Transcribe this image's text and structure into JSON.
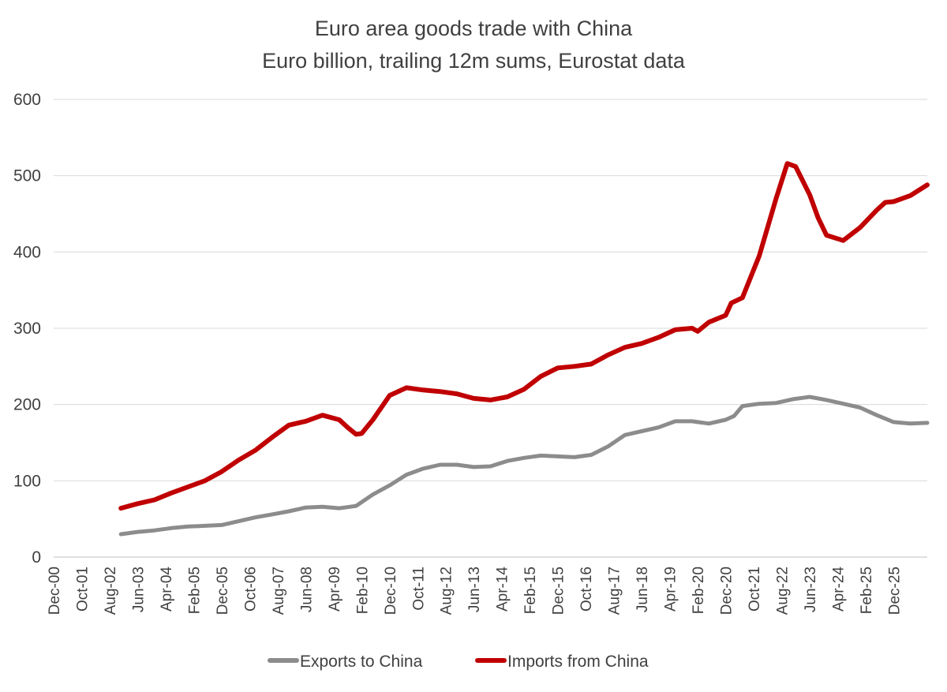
{
  "chart_data": {
    "type": "line",
    "title": "Euro area goods trade with China",
    "subtitle": "Euro billion, trailing 12m sums, Eurostat data",
    "xlabel": "",
    "ylabel": "",
    "ylim": [
      0,
      600
    ],
    "yticks": [
      0,
      100,
      200,
      300,
      400,
      500,
      600
    ],
    "x_ticks": [
      "Dec-00",
      "Oct-01",
      "Aug-02",
      "Jun-03",
      "Apr-04",
      "Feb-05",
      "Dec-05",
      "Oct-06",
      "Aug-07",
      "Jun-08",
      "Apr-09",
      "Feb-10",
      "Dec-10",
      "Oct-11",
      "Aug-12",
      "Jun-13",
      "Apr-14",
      "Feb-15",
      "Dec-15",
      "Oct-16",
      "Aug-17",
      "Jun-18",
      "Apr-19",
      "Feb-20",
      "Dec-20",
      "Oct-21",
      "Aug-22",
      "Jun-23",
      "Apr-24",
      "Feb-25",
      "Dec-25"
    ],
    "x_range": [
      "Dec-00",
      "Dec-26"
    ],
    "grid": true,
    "legend_position": "bottom",
    "colors": {
      "Exports to China": "#8c8c8c",
      "Imports from China": "#c00000"
    },
    "series": [
      {
        "name": "Exports to China",
        "points": [
          [
            "Dec-02",
            30
          ],
          [
            "Jun-03",
            33
          ],
          [
            "Dec-03",
            35
          ],
          [
            "Jun-04",
            38
          ],
          [
            "Dec-04",
            40
          ],
          [
            "Jun-05",
            41
          ],
          [
            "Dec-05",
            42
          ],
          [
            "Jun-06",
            47
          ],
          [
            "Dec-06",
            52
          ],
          [
            "Jun-07",
            56
          ],
          [
            "Dec-07",
            60
          ],
          [
            "Jun-08",
            65
          ],
          [
            "Dec-08",
            66
          ],
          [
            "Jun-09",
            64
          ],
          [
            "Dec-09",
            67
          ],
          [
            "Jun-10",
            82
          ],
          [
            "Dec-10",
            94
          ],
          [
            "Jun-11",
            108
          ],
          [
            "Dec-11",
            116
          ],
          [
            "Jun-12",
            121
          ],
          [
            "Dec-12",
            121
          ],
          [
            "Jun-13",
            118
          ],
          [
            "Dec-13",
            119
          ],
          [
            "Jun-14",
            126
          ],
          [
            "Dec-14",
            130
          ],
          [
            "Jun-15",
            133
          ],
          [
            "Dec-15",
            132
          ],
          [
            "Jun-16",
            131
          ],
          [
            "Dec-16",
            134
          ],
          [
            "Jun-17",
            145
          ],
          [
            "Dec-17",
            160
          ],
          [
            "Jun-18",
            165
          ],
          [
            "Dec-18",
            170
          ],
          [
            "Jun-19",
            178
          ],
          [
            "Dec-19",
            178
          ],
          [
            "Jun-20",
            175
          ],
          [
            "Dec-20",
            180
          ],
          [
            "Mar-21",
            185
          ],
          [
            "Jun-21",
            198
          ],
          [
            "Dec-21",
            201
          ],
          [
            "Jun-22",
            202
          ],
          [
            "Dec-22",
            207
          ],
          [
            "Jun-23",
            210
          ],
          [
            "Dec-23",
            206
          ],
          [
            "Jun-24",
            201
          ],
          [
            "Dec-24",
            196
          ],
          [
            "Jun-25",
            186
          ],
          [
            "Dec-25",
            177
          ],
          [
            "Jun-26",
            175
          ],
          [
            "Dec-26",
            176
          ]
        ]
      },
      {
        "name": "Imports from China",
        "points": [
          [
            "Dec-02",
            64
          ],
          [
            "Jun-03",
            70
          ],
          [
            "Dec-03",
            75
          ],
          [
            "Jun-04",
            84
          ],
          [
            "Dec-04",
            92
          ],
          [
            "Jun-05",
            100
          ],
          [
            "Dec-05",
            112
          ],
          [
            "Jun-06",
            127
          ],
          [
            "Dec-06",
            140
          ],
          [
            "Jun-07",
            157
          ],
          [
            "Dec-07",
            173
          ],
          [
            "Jun-08",
            178
          ],
          [
            "Dec-08",
            186
          ],
          [
            "Jun-09",
            180
          ],
          [
            "Sep-09",
            170
          ],
          [
            "Dec-09",
            161
          ],
          [
            "Feb-10",
            162
          ],
          [
            "Jun-10",
            180
          ],
          [
            "Dec-10",
            212
          ],
          [
            "Jun-11",
            222
          ],
          [
            "Dec-11",
            219
          ],
          [
            "Jun-12",
            217
          ],
          [
            "Dec-12",
            214
          ],
          [
            "Jun-13",
            208
          ],
          [
            "Dec-13",
            206
          ],
          [
            "Jun-14",
            210
          ],
          [
            "Dec-14",
            220
          ],
          [
            "Jun-15",
            237
          ],
          [
            "Dec-15",
            248
          ],
          [
            "Jun-16",
            250
          ],
          [
            "Dec-16",
            253
          ],
          [
            "Jun-17",
            265
          ],
          [
            "Dec-17",
            275
          ],
          [
            "Jun-18",
            280
          ],
          [
            "Dec-18",
            288
          ],
          [
            "Jun-19",
            298
          ],
          [
            "Dec-19",
            300
          ],
          [
            "Feb-20",
            296
          ],
          [
            "Jun-20",
            308
          ],
          [
            "Dec-20",
            317
          ],
          [
            "Feb-21",
            333
          ],
          [
            "Jun-21",
            340
          ],
          [
            "Dec-21",
            395
          ],
          [
            "Jun-22",
            470
          ],
          [
            "Oct-22",
            516
          ],
          [
            "Jan-23",
            512
          ],
          [
            "Jun-23",
            475
          ],
          [
            "Sep-23",
            445
          ],
          [
            "Dec-23",
            422
          ],
          [
            "Jun-24",
            415
          ],
          [
            "Dec-24",
            432
          ],
          [
            "Jun-25",
            455
          ],
          [
            "Sep-25",
            465
          ],
          [
            "Dec-25",
            466
          ],
          [
            "Jun-26",
            474
          ],
          [
            "Dec-26",
            488
          ]
        ]
      }
    ]
  }
}
